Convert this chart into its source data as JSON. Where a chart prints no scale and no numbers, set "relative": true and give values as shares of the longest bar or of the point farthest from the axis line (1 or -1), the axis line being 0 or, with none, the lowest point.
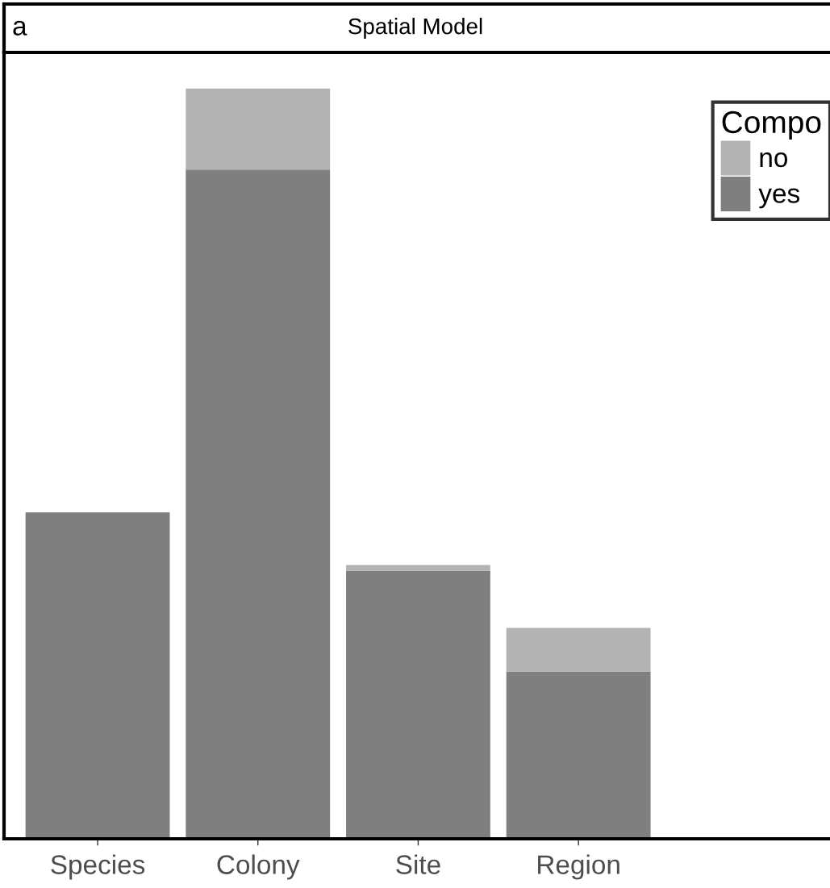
{
  "chart_data": {
    "type": "bar",
    "title": "Spatial Model",
    "annotations": [
      "a"
    ],
    "relative": true,
    "stacked": true,
    "legend": "top right",
    "legend_title": "Compo",
    "grid": false,
    "categories": [
      "Species",
      "Colony",
      "Site",
      "Region"
    ],
    "series": [
      {
        "name": "yes",
        "color": "#7f7f7f",
        "values": [
          0.435,
          0.892,
          0.357,
          0.223
        ]
      },
      {
        "name": "no",
        "color": "#b3b3b3",
        "values": [
          null,
          0.108,
          0.008,
          0.058
        ]
      }
    ]
  }
}
